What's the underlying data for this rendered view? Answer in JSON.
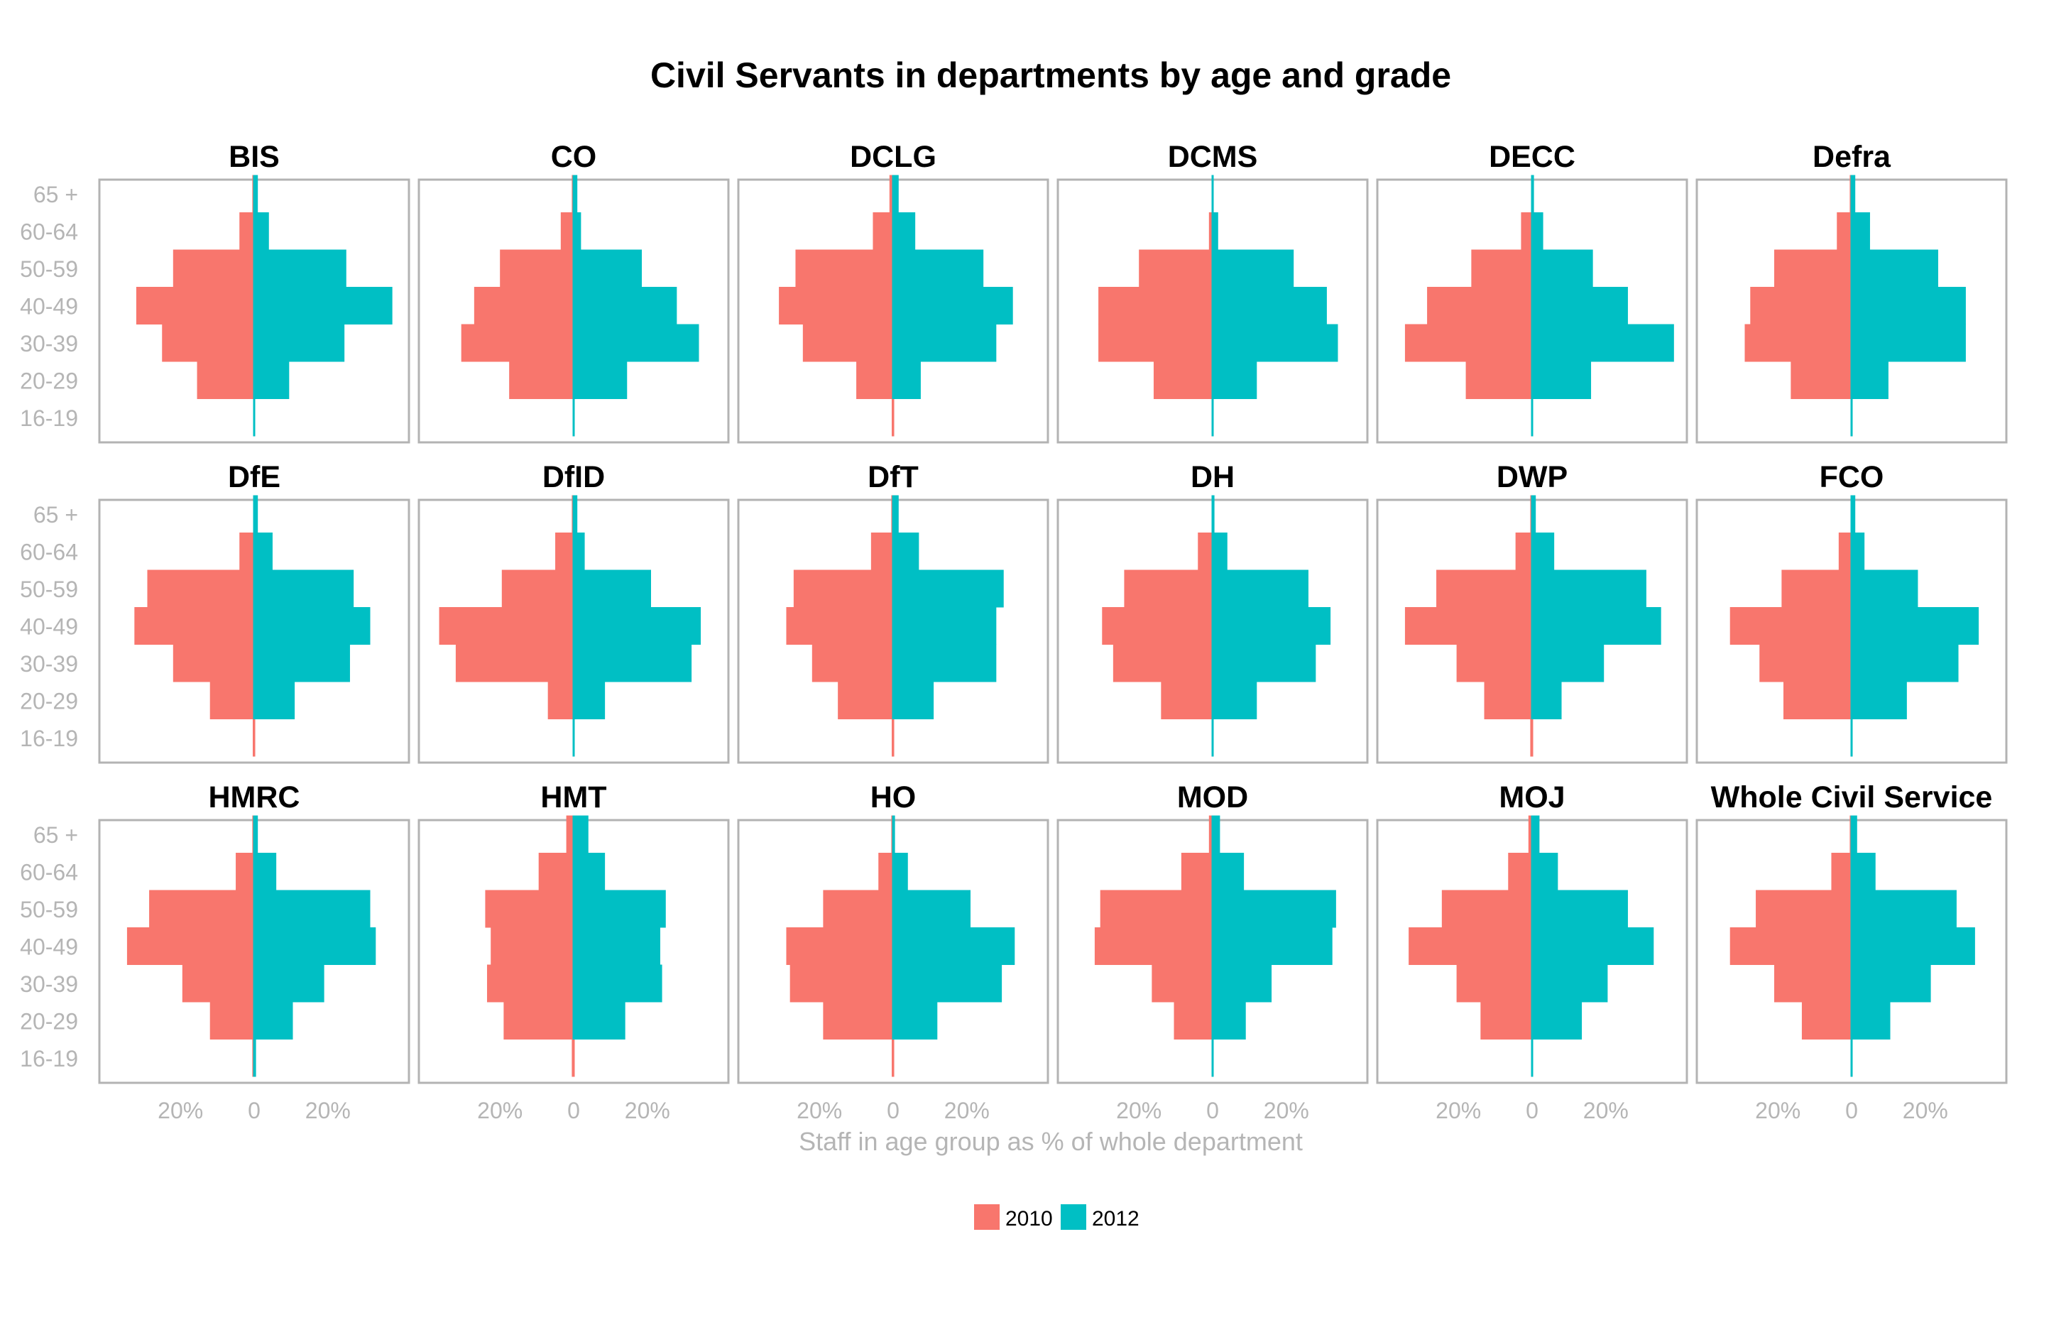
{
  "chart_data": {
    "type": "bar",
    "subtype": "population-pyramid-small-multiples",
    "title": "Civil Servants in departments by age and grade",
    "xlabel": "Staff in age group as % of whole department",
    "ylabel": "",
    "x_ticks": [
      "20%",
      "0",
      "20%"
    ],
    "x_tick_values": [
      -20,
      0,
      20
    ],
    "xlim": [
      -42,
      42
    ],
    "grid": false,
    "legend_position": "bottom",
    "age_groups": [
      "16-19",
      "20-29",
      "30-39",
      "40-49",
      "50-59",
      "60-64",
      "65 +"
    ],
    "series": [
      {
        "name": "2010",
        "color": "#F8766D",
        "direction": "left"
      },
      {
        "name": "2012",
        "color": "#00BFC4",
        "direction": "right"
      }
    ],
    "panels": [
      {
        "name": "BIS",
        "v2010": [
          0,
          15.5,
          25,
          32,
          22,
          4,
          0.5
        ],
        "v2012": [
          0,
          9.5,
          24.5,
          37.5,
          25,
          4,
          1
        ]
      },
      {
        "name": "CO",
        "v2010": [
          0,
          17.5,
          30.5,
          27,
          20,
          3.5,
          0.5
        ],
        "v2012": [
          0,
          14.5,
          34,
          28,
          18.5,
          2,
          1
        ]
      },
      {
        "name": "DCLG",
        "v2010": [
          0.2,
          10,
          24.5,
          31,
          26.5,
          5.5,
          1
        ],
        "v2012": [
          0,
          7.5,
          28,
          32.5,
          24.5,
          6,
          1.5
        ]
      },
      {
        "name": "DCMS",
        "v2010": [
          0,
          16,
          31,
          31,
          20,
          1,
          0
        ],
        "v2012": [
          0,
          12,
          34,
          31,
          22,
          1.5,
          0
        ]
      },
      {
        "name": "DECC",
        "v2010": [
          0,
          18,
          34.5,
          28.5,
          16.5,
          3,
          0
        ],
        "v2012": [
          0,
          16,
          38.5,
          26,
          16.5,
          3,
          0.5
        ]
      },
      {
        "name": "Defra",
        "v2010": [
          0,
          16.5,
          29,
          27.5,
          21,
          4,
          0.5
        ],
        "v2012": [
          0,
          10,
          31,
          31,
          23.5,
          5,
          1
        ]
      },
      {
        "name": "DfE",
        "v2010": [
          0.2,
          12,
          22,
          32.5,
          29,
          4,
          0
        ],
        "v2012": [
          0,
          11,
          26,
          31.5,
          27,
          5,
          1
        ]
      },
      {
        "name": "DfID",
        "v2010": [
          0,
          7,
          32,
          36.5,
          19.5,
          5,
          0.5
        ],
        "v2012": [
          0,
          8.5,
          32,
          34.5,
          21,
          3,
          1
        ]
      },
      {
        "name": "DfT",
        "v2010": [
          0.2,
          15,
          22,
          29,
          27,
          6,
          0.5
        ],
        "v2012": [
          0,
          11,
          28,
          28,
          30,
          7,
          1.5
        ]
      },
      {
        "name": "DH",
        "v2010": [
          0,
          14,
          27,
          30,
          24,
          4,
          0
        ],
        "v2012": [
          0,
          12,
          28,
          32,
          26,
          4,
          0.5
        ]
      },
      {
        "name": "DWP",
        "v2010": [
          0.5,
          13,
          20.5,
          34.5,
          26,
          4.5,
          0.5
        ],
        "v2012": [
          0,
          8,
          19.5,
          35,
          31,
          6,
          1
        ]
      },
      {
        "name": "FCO",
        "v2010": [
          0,
          18.5,
          25,
          33,
          19,
          3.5,
          0
        ],
        "v2012": [
          0,
          15,
          29,
          34.5,
          18,
          3.5,
          1
        ]
      },
      {
        "name": "HMRC",
        "v2010": [
          0.5,
          12,
          19.5,
          34.5,
          28.5,
          5,
          0.5
        ],
        "v2012": [
          0.5,
          10.5,
          19,
          33,
          31.5,
          6,
          1
        ]
      },
      {
        "name": "HMT",
        "v2010": [
          0.5,
          19,
          23.5,
          22.5,
          24,
          9.5,
          2
        ],
        "v2012": [
          0,
          14,
          24,
          23.5,
          25,
          8.5,
          4
        ]
      },
      {
        "name": "HO",
        "v2010": [
          0.2,
          19,
          28,
          29,
          19,
          4,
          0.5
        ],
        "v2012": [
          0,
          12,
          29.5,
          33,
          21,
          4,
          0.5
        ]
      },
      {
        "name": "MOD",
        "v2010": [
          0,
          10.5,
          16.5,
          32,
          30.5,
          8.5,
          1
        ],
        "v2012": [
          0,
          9,
          16,
          32.5,
          33.5,
          8.5,
          2
        ]
      },
      {
        "name": "MOJ",
        "v2010": [
          0,
          14,
          20.5,
          33.5,
          24.5,
          6.5,
          1
        ],
        "v2012": [
          0,
          13.5,
          20.5,
          33,
          26,
          7,
          2
        ]
      },
      {
        "name": "Whole Civil Service",
        "v2010": [
          0,
          13.5,
          21,
          33,
          26,
          5.5,
          0.5
        ],
        "v2012": [
          0,
          10.5,
          21.5,
          33.5,
          28.5,
          6.5,
          1.5
        ]
      }
    ]
  }
}
